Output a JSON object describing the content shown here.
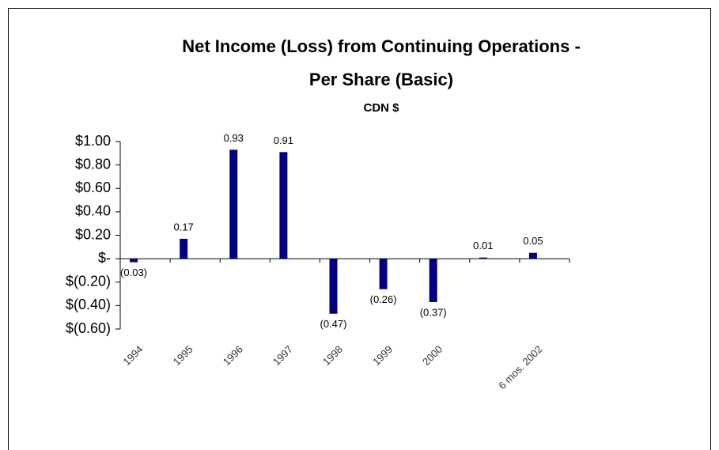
{
  "chart_data": {
    "type": "bar",
    "title": [
      "Net Income (Loss) from Continuing Operations -",
      "Per Share (Basic)"
    ],
    "subtitle": "CDN $",
    "categories": [
      "1994",
      "1995",
      "1996",
      "1997",
      "1998",
      "1999",
      "2000",
      null,
      "6 mos. 2002"
    ],
    "values": [
      -0.03,
      0.17,
      0.93,
      0.91,
      -0.47,
      -0.26,
      -0.37,
      0.01,
      0.05
    ],
    "value_labels": [
      "(0.03)",
      "0.17",
      "0.93",
      "0.91",
      "(0.47)",
      "(0.26)",
      "(0.37)",
      "0.01",
      "0.05"
    ],
    "color": "#000080",
    "ylim": [
      -0.6,
      1.0
    ],
    "yticks": [
      {
        "value": 1.0,
        "label": "$1.00"
      },
      {
        "value": 0.8,
        "label": "$0.80"
      },
      {
        "value": 0.6,
        "label": "$0.60"
      },
      {
        "value": 0.4,
        "label": "$0.40"
      },
      {
        "value": 0.2,
        "label": "$0.20"
      },
      {
        "value": 0,
        "label": "$-"
      },
      {
        "value": -0.2,
        "label": "$(0.20)"
      },
      {
        "value": -0.4,
        "label": "$(0.40)"
      },
      {
        "value": -0.6,
        "label": "$(0.60)"
      }
    ]
  }
}
